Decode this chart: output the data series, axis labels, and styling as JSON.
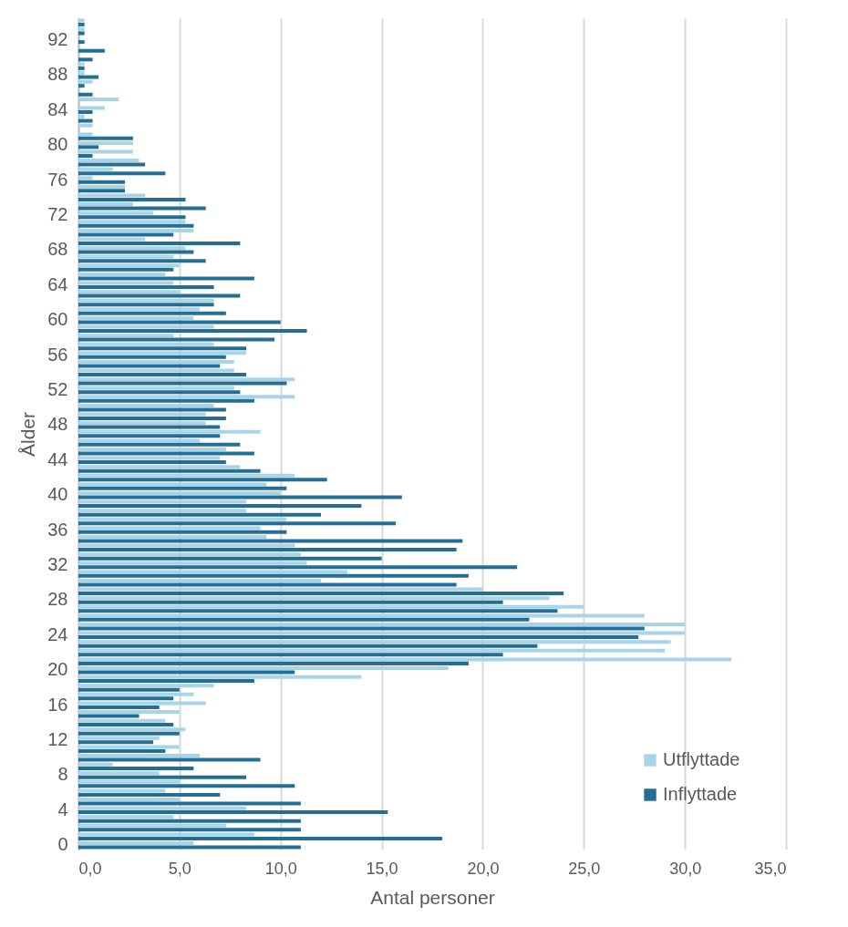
{
  "chart_data": {
    "type": "bar",
    "orientation": "horizontal",
    "xlabel": "Antal personer",
    "ylabel": "Ålder",
    "categories": [
      null,
      null,
      "92",
      null,
      null,
      null,
      "88",
      null,
      null,
      null,
      "84",
      null,
      null,
      null,
      "80",
      null,
      null,
      null,
      "76",
      null,
      null,
      null,
      "72",
      null,
      null,
      null,
      "68",
      null,
      null,
      null,
      "64",
      null,
      null,
      null,
      "60",
      null,
      null,
      null,
      "56",
      null,
      null,
      null,
      "52",
      null,
      null,
      null,
      "48",
      null,
      null,
      null,
      "44",
      null,
      null,
      null,
      "40",
      null,
      null,
      null,
      "36",
      null,
      null,
      null,
      "32",
      null,
      null,
      null,
      "28",
      null,
      null,
      null,
      "24",
      null,
      null,
      null,
      "20",
      null,
      null,
      null,
      "16",
      null,
      null,
      null,
      "12",
      null,
      null,
      null,
      "8",
      null,
      null,
      null,
      "4",
      null,
      null,
      null,
      "0"
    ],
    "series": [
      {
        "name": "Utflyttade",
        "color": "#a9d4e8",
        "values": [
          0.3,
          0.3,
          0,
          0,
          0,
          0.3,
          0.3,
          0.7,
          0,
          2.0,
          1.3,
          0.3,
          0.7,
          0.7,
          2.7,
          2.7,
          3.0,
          1.7,
          0.7,
          2.3,
          3.3,
          2.7,
          3.7,
          5.3,
          5.7,
          3.3,
          5.3,
          4.7,
          5.0,
          4.3,
          4.7,
          5.0,
          6.7,
          6.0,
          5.7,
          6.7,
          4.7,
          6.7,
          8.3,
          7.7,
          7.7,
          10.7,
          7.7,
          10.7,
          6.7,
          6.3,
          6.3,
          9.0,
          6.0,
          7.3,
          7.0,
          8.0,
          10.7,
          9.3,
          10.0,
          8.3,
          8.3,
          10.3,
          9.0,
          9.3,
          10.7,
          11.0,
          11.3,
          13.3,
          12.0,
          20.0,
          23.3,
          25.0,
          28.0,
          30.0,
          30.0,
          29.3,
          29.0,
          32.3,
          18.3,
          14.0,
          6.7,
          5.7,
          6.3,
          5.0,
          4.3,
          5.3,
          4.0,
          5.0,
          6.0,
          1.7,
          4.0,
          5.0,
          4.3,
          5.0,
          8.3,
          4.7,
          7.3,
          8.7,
          5.7
        ]
      },
      {
        "name": "Inflyttade",
        "color": "#236e92",
        "values": [
          0.3,
          0.3,
          0.3,
          1.3,
          0.7,
          0.3,
          1.0,
          0.3,
          0.7,
          0,
          0.7,
          0.7,
          0,
          2.7,
          1.0,
          0.7,
          3.3,
          4.3,
          2.3,
          2.3,
          5.3,
          6.3,
          5.3,
          5.7,
          4.7,
          8.0,
          5.7,
          6.3,
          4.7,
          8.7,
          6.7,
          8.0,
          6.7,
          7.3,
          10.0,
          11.3,
          9.7,
          8.3,
          7.3,
          7.0,
          8.3,
          10.3,
          8.0,
          8.7,
          7.3,
          7.3,
          7.0,
          7.0,
          8.0,
          8.7,
          7.3,
          9.0,
          12.3,
          10.3,
          16.0,
          14.0,
          12.0,
          15.7,
          10.3,
          19.0,
          18.7,
          15.0,
          21.7,
          19.3,
          18.7,
          24.0,
          21.0,
          23.7,
          22.3,
          28.0,
          27.7,
          22.7,
          21.0,
          19.3,
          10.7,
          8.7,
          5.0,
          4.7,
          4.0,
          3.0,
          4.7,
          5.0,
          3.7,
          4.3,
          9.0,
          5.7,
          8.3,
          10.7,
          7.0,
          11.0,
          15.3,
          11.0,
          11.0,
          18.0,
          11.0
        ]
      }
    ],
    "xlim": [
      0,
      35
    ],
    "xticks": [
      {
        "value": 0,
        "label": "0,0"
      },
      {
        "value": 5,
        "label": "5,0"
      },
      {
        "value": 10,
        "label": "10,0"
      },
      {
        "value": 15,
        "label": "15,0"
      },
      {
        "value": 20,
        "label": "20,0"
      },
      {
        "value": 25,
        "label": "25,0"
      },
      {
        "value": 30,
        "label": "30,0"
      },
      {
        "value": 35,
        "label": "35,0"
      }
    ],
    "grid": "x",
    "legend": "bottom right"
  }
}
